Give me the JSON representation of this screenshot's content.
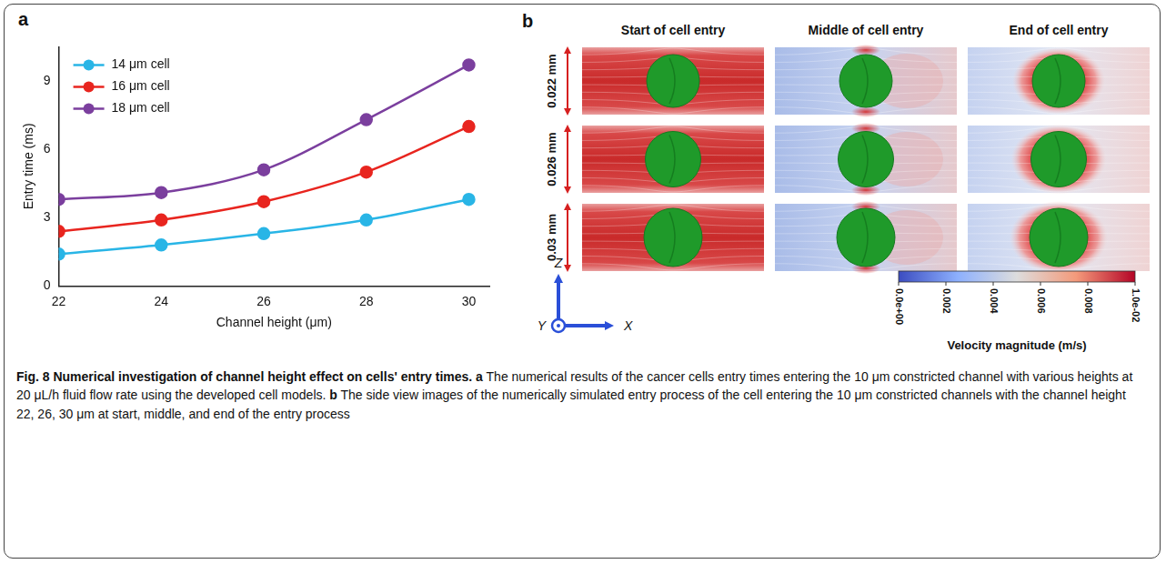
{
  "chart_data": {
    "type": "line",
    "x_label": "Channel height (μm)",
    "y_label": "Entry time (ms)",
    "x": [
      22,
      24,
      26,
      28,
      30
    ],
    "series": [
      {
        "name": "14 μm cell",
        "color": "#29b5e6",
        "values": [
          1.4,
          1.8,
          2.3,
          2.9,
          3.8
        ]
      },
      {
        "name": "16 μm cell",
        "color": "#e8251f",
        "values": [
          2.4,
          2.9,
          3.7,
          5.0,
          7.0
        ]
      },
      {
        "name": "18 μm cell",
        "color": "#7b3f9e",
        "values": [
          3.8,
          4.1,
          5.1,
          7.3,
          9.7
        ]
      }
    ],
    "xlim": [
      22,
      30.4
    ],
    "xticks": [
      22,
      24,
      26,
      28,
      30
    ],
    "ylim": [
      0,
      10.5
    ],
    "yticks": [
      0,
      3,
      6,
      9
    ],
    "grid": false,
    "legend": "top-left",
    "marker": "circle"
  },
  "panel_letters": [
    "a",
    "b"
  ],
  "panel_b": {
    "columns": [
      "Start of cell entry",
      "Middle of cell entry",
      "End of cell entry"
    ],
    "rows": [
      "0.022 mm",
      "0.026 mm",
      "0.03 mm"
    ],
    "axes": [
      "Z",
      "Y",
      "X"
    ],
    "colorbar": {
      "title": "Velocity magnitude (m/s)",
      "range": [
        0,
        0.01
      ],
      "ticks": [
        {
          "value": 0,
          "label": "0.0e+00"
        },
        0.002,
        0.004,
        0.006,
        0.008,
        {
          "value": 0.01,
          "label": "1.0e-02"
        }
      ]
    }
  },
  "caption": [
    {
      "text": "Fig. 8 Numerical investigation of channel height effect on cells' entry times.",
      "bold": true
    },
    {
      "text": "a",
      "bold": true
    },
    {
      "text": "The numerical results of the cancer cells entry times entering the 10 μm constricted channel with various heights at 20 μL/h fluid flow rate using the developed cell models.",
      "bold": false
    },
    {
      "text": "b",
      "bold": true
    },
    {
      "text": "The side view images of the numerically simulated entry process of the cell entering the 10 μm constricted channels with the channel height 22, 26, 30 μm at start, middle, and end of the entry process",
      "bold": false
    }
  ]
}
